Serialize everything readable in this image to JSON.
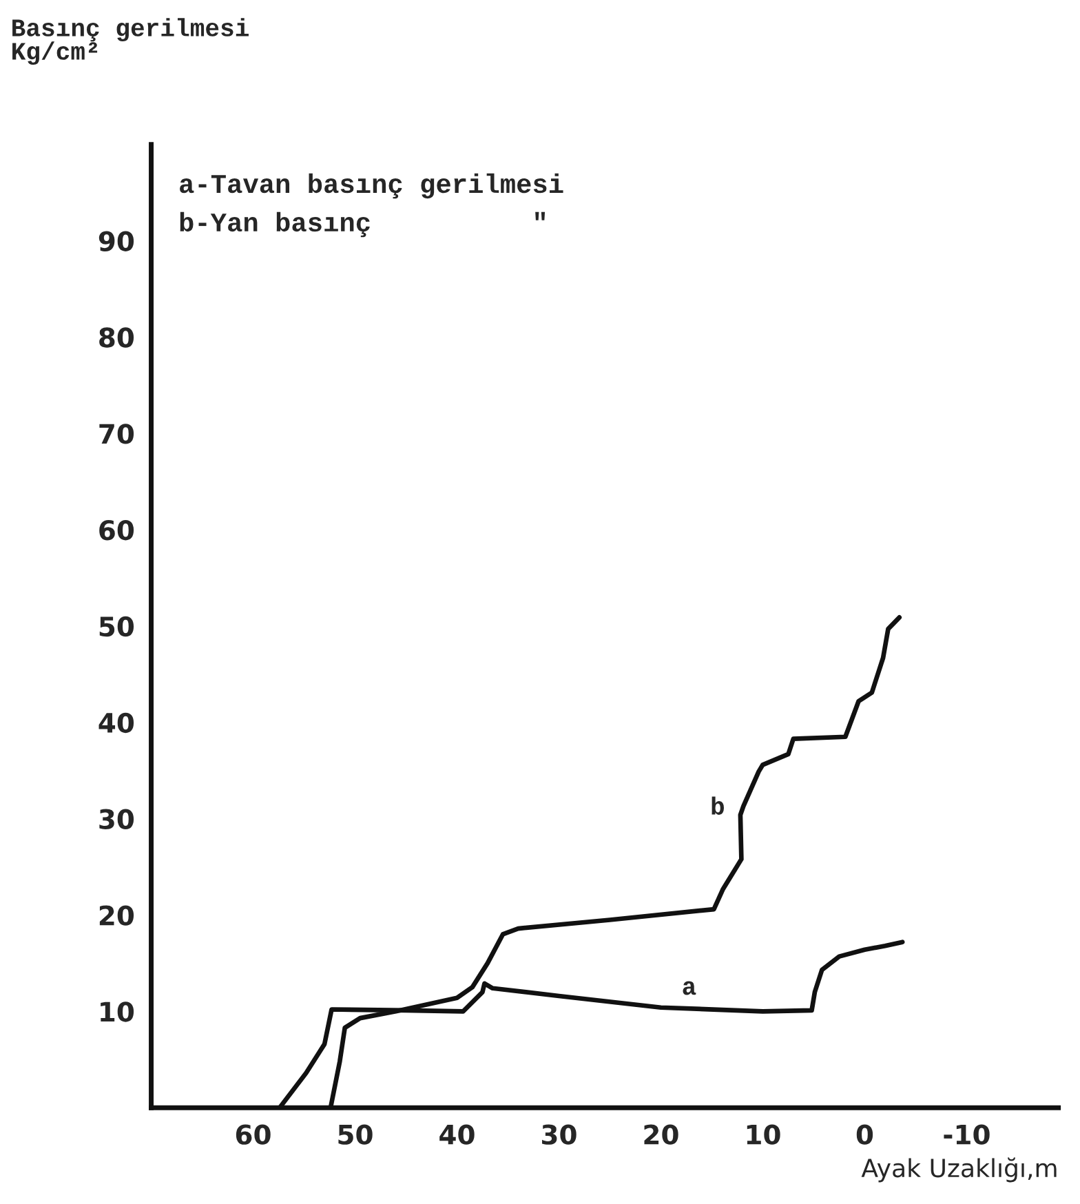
{
  "chart_data": {
    "type": "line",
    "ylabel": "Basınç gerilmesi\nKg/cm²",
    "xlabel": "Ayak Uzaklığı,m",
    "annotations": [
      "a-Tavan basınç gerilmesi",
      "b-Yan basınç          \""
    ],
    "xlim": [
      70,
      -19
    ],
    "ylim": [
      0,
      100
    ],
    "xticks": [
      60,
      50,
      40,
      30,
      20,
      10,
      0,
      -10
    ],
    "yticks": [
      10,
      20,
      30,
      40,
      50,
      60,
      70,
      80,
      90
    ],
    "grid": false,
    "marker": "none",
    "line_style": "solid",
    "series": [
      {
        "name": "a",
        "color": "#111111",
        "x": [
          57.4,
          54.8,
          53,
          52.3,
          45,
          39.4,
          37.5,
          37.3,
          36.5,
          30,
          20,
          10,
          5.2,
          4.9,
          4.2,
          2.5,
          0,
          -2,
          -3.7
        ],
        "values": [
          0,
          3.6,
          6.6,
          10.2,
          10.1,
          10,
          12,
          12.9,
          12.4,
          11.6,
          10.4,
          10,
          10.1,
          12,
          14.3,
          15.7,
          16.4,
          16.8,
          17.2
        ]
      },
      {
        "name": "b",
        "color": "#111111",
        "x": [
          52.4,
          51.5,
          51,
          49.5,
          46,
          40,
          38.5,
          37,
          35.5,
          34,
          25,
          14.8,
          13.9,
          12.1,
          12.2,
          11.9,
          10.4,
          10,
          7.5,
          7,
          1.9,
          0.6,
          -0.7,
          -1.8,
          -2.3,
          -3.4
        ],
        "values": [
          0,
          4.8,
          8.3,
          9.3,
          10,
          11.4,
          12.5,
          15,
          18,
          18.6,
          19.5,
          20.6,
          22.7,
          25.8,
          30.4,
          31.3,
          34.9,
          35.6,
          36.7,
          38.3,
          38.5,
          42.2,
          43.1,
          46.7,
          49.7,
          50.9
        ]
      }
    ]
  }
}
